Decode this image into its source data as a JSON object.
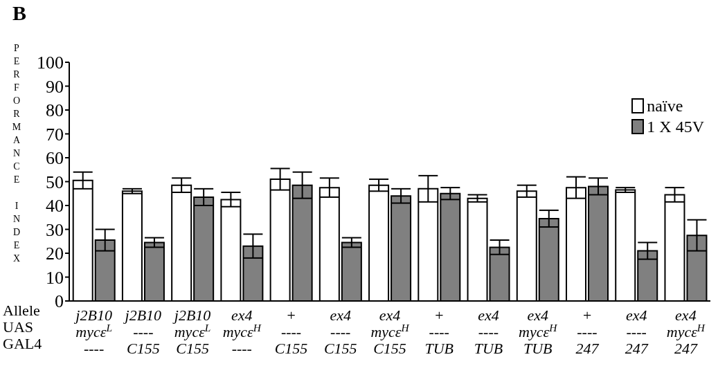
{
  "chart_data": {
    "type": "bar",
    "title": "B",
    "ylabel": "PERFORMANCE INDEX",
    "categories": [
      "j2B10\nmycε$^{L}$\n----",
      "j2B10\n----\nC155",
      "j2B10\nmycε$^{L}$\nC155",
      "ex4\nmycε$^{H}$\n----",
      "+\n----\nC155",
      "ex4\n----\nC155",
      "ex4\nmycε$^{H}$\nC155",
      "+\n----\nTUB",
      "ex4\n----\nTUB",
      "ex4\nmycε$^{H}$\nTUB",
      "+\n----\n247",
      "ex4\n----\n247",
      "ex4\nmycε$^{H}$\n247"
    ],
    "annotations": [
      "Allele",
      "UAS",
      "GAL4"
    ],
    "series": [
      {
        "name": "naïve",
        "color": "#ffffff",
        "values": [
          50.5,
          46,
          48.5,
          42.5,
          51,
          47.5,
          48.5,
          47,
          43,
          46,
          47.5,
          46.5,
          44.5
        ],
        "errors": [
          3.5,
          1,
          3,
          3,
          4.5,
          4,
          2.5,
          5.5,
          1.5,
          2.5,
          4.5,
          1,
          3
        ]
      },
      {
        "name": "1 X 45V",
        "color": "#808080",
        "values": [
          25.5,
          24.5,
          43.5,
          23,
          48.5,
          24.5,
          44,
          45,
          22.5,
          34.5,
          48,
          21,
          27.5
        ],
        "errors": [
          4.5,
          2,
          3.5,
          5,
          5.5,
          2,
          3,
          2.5,
          3,
          3.5,
          3.5,
          3.5,
          6.5
        ]
      }
    ],
    "ylim": [
      0,
      100
    ],
    "yticks": [
      0,
      10,
      20,
      30,
      40,
      50,
      60,
      70,
      80,
      90,
      100
    ],
    "legend": "top right"
  }
}
